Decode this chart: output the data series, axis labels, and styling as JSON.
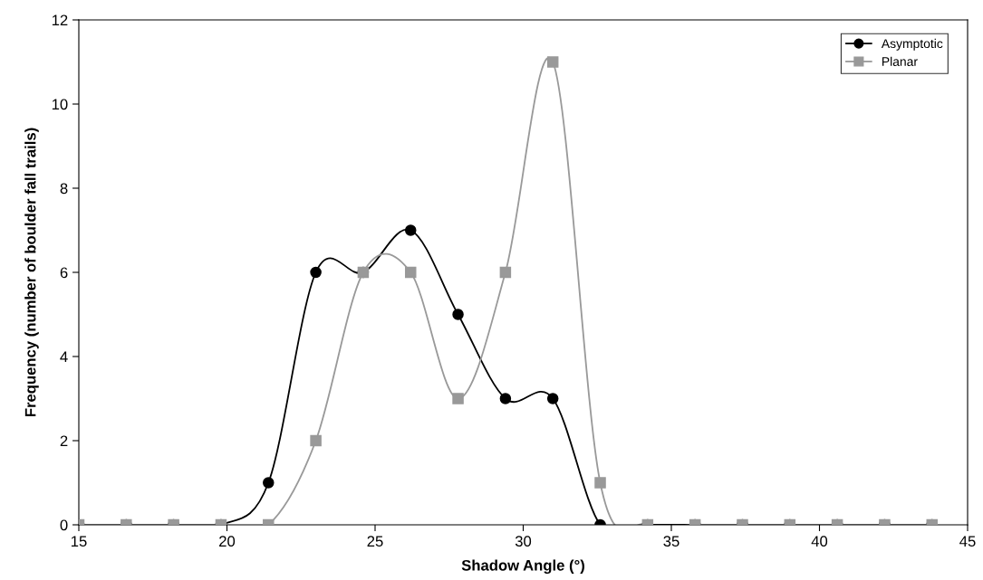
{
  "chart_data": {
    "type": "line",
    "xlabel": "Shadow Angle (°)",
    "ylabel": "Frequency (number of boulder fall trails)",
    "x": [
      15,
      16.6,
      18.2,
      19.8,
      21.4,
      23,
      24.6,
      26.2,
      27.8,
      29.4,
      31,
      32.6,
      34.2,
      35.8,
      37.4,
      39,
      40.6,
      42.2,
      43.8
    ],
    "series": [
      {
        "name": "Asymptotic",
        "color": "#000000",
        "marker": "circle",
        "values": [
          0,
          0,
          0,
          0,
          1,
          6,
          6,
          7,
          5,
          3,
          3,
          0,
          0,
          0,
          0,
          0,
          0,
          0,
          0
        ]
      },
      {
        "name": "Planar",
        "color": "#999999",
        "marker": "square",
        "values": [
          0,
          0,
          0,
          0,
          0,
          2,
          6,
          6,
          3,
          6,
          11,
          1,
          0,
          0,
          0,
          0,
          0,
          0,
          0
        ]
      }
    ],
    "xlim": [
      15,
      45
    ],
    "xticks": [
      15,
      20,
      25,
      30,
      35,
      40,
      45
    ],
    "ylim": [
      0,
      12
    ],
    "yticks": [
      0,
      2,
      4,
      6,
      8,
      10,
      12
    ],
    "grid": false,
    "legend": "top right",
    "line_style": "solid"
  }
}
